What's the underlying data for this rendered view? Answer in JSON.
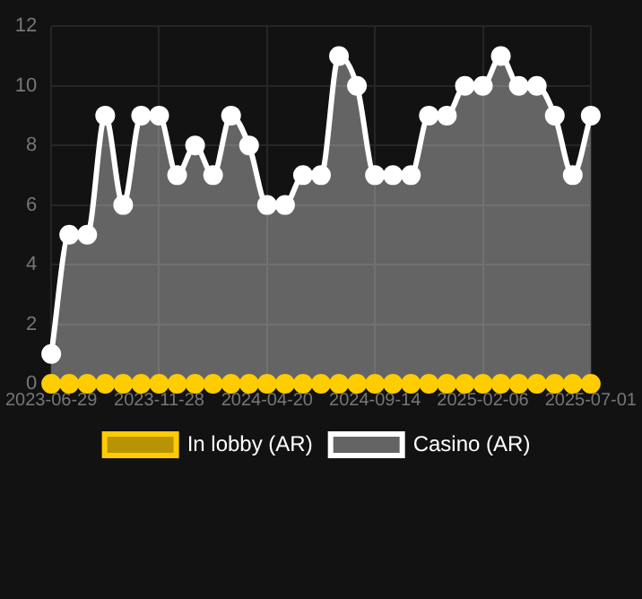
{
  "chart_data": {
    "type": "area",
    "categories": [
      "2023-06-29",
      null,
      null,
      null,
      null,
      null,
      "2023-11-28",
      null,
      null,
      null,
      null,
      null,
      "2024-04-20",
      null,
      null,
      null,
      null,
      null,
      "2024-09-14",
      null,
      null,
      null,
      null,
      null,
      "2025-02-06",
      null,
      null,
      null,
      null,
      null,
      "2025-07-01"
    ],
    "series": [
      {
        "name": "In lobby (AR)",
        "type": "line",
        "color": "#ffcc00",
        "values": [
          0,
          0,
          0,
          0,
          0,
          0,
          0,
          0,
          0,
          0,
          0,
          0,
          0,
          0,
          0,
          0,
          0,
          0,
          0,
          0,
          0,
          0,
          0,
          0,
          0,
          0,
          0,
          0,
          0,
          0,
          0
        ]
      },
      {
        "name": "Casino (AR)",
        "color": "#ffffff",
        "values": [
          1,
          5,
          5,
          9,
          6,
          9,
          9,
          7,
          8,
          7,
          9,
          8,
          6,
          6,
          7,
          7,
          11,
          10,
          7,
          7,
          7,
          9,
          9,
          10,
          10,
          11,
          10,
          10,
          9,
          7,
          9
        ]
      }
    ],
    "ylim": [
      0,
      12
    ],
    "yticks": [
      0,
      2,
      4,
      6,
      8,
      10,
      12
    ],
    "grid": true,
    "legend": "bottom",
    "marker": "circle",
    "line_style": "solid"
  }
}
